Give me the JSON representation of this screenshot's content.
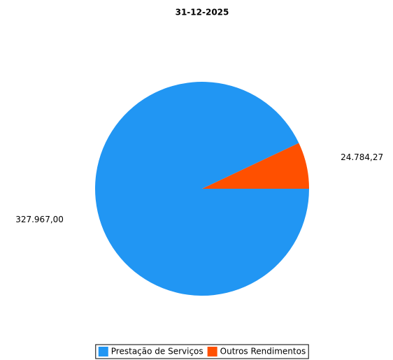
{
  "chart_data": {
    "type": "pie",
    "title": "31-12-2025",
    "categories": [
      "Prestação de Serviços",
      "Outros Rendimentos"
    ],
    "values": [
      327967.0,
      24784.27
    ],
    "value_labels": [
      "327.967,00",
      "24.784,27"
    ],
    "colors": [
      "#2196f3",
      "#ff5000"
    ],
    "legend": "bottom"
  }
}
